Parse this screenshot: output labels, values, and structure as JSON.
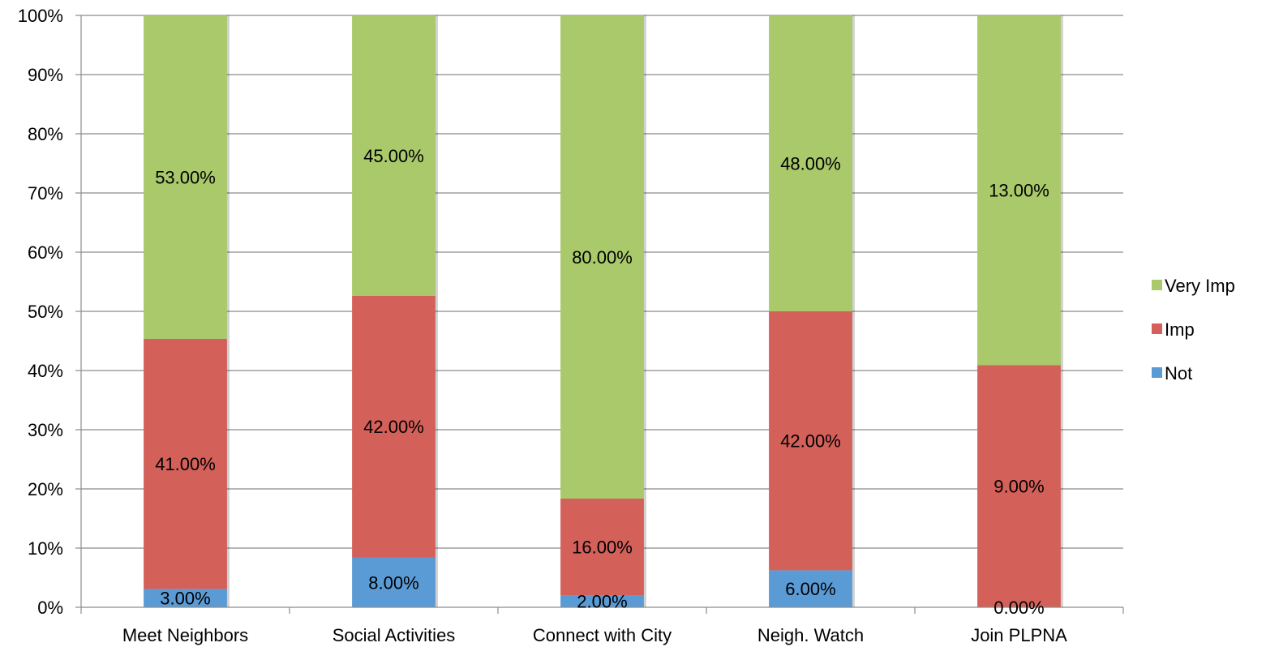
{
  "chart_data": {
    "type": "bar",
    "stacked": true,
    "percent_stacked": true,
    "categories": [
      "Meet Neighbors",
      "Social Activities",
      "Connect with City",
      "Neigh. Watch",
      "Join PLPNA"
    ],
    "series": [
      {
        "name": "Not",
        "color": "#5b9bd5",
        "values": [
          3,
          8,
          2,
          6,
          0
        ],
        "labels": [
          "3.00%",
          "8.00%",
          "2.00%",
          "6.00%",
          "0.00%"
        ]
      },
      {
        "name": "Imp",
        "color": "#d4605a",
        "values": [
          41,
          42,
          16,
          42,
          9
        ],
        "labels": [
          "41.00%",
          "42.00%",
          "16.00%",
          "42.00%",
          "9.00%"
        ]
      },
      {
        "name": "Very Imp",
        "color": "#a9c96a",
        "values": [
          53,
          45,
          80,
          48,
          13
        ],
        "labels": [
          "53.00%",
          "45.00%",
          "80.00%",
          "48.00%",
          "13.00%"
        ]
      }
    ],
    "ylim": [
      0,
      100
    ],
    "yticks": [
      "0%",
      "10%",
      "20%",
      "30%",
      "40%",
      "50%",
      "60%",
      "70%",
      "80%",
      "90%",
      "100%"
    ],
    "legend": {
      "placement": "right",
      "order": [
        "Very Imp",
        "Imp",
        "Not"
      ]
    },
    "grid": true
  }
}
